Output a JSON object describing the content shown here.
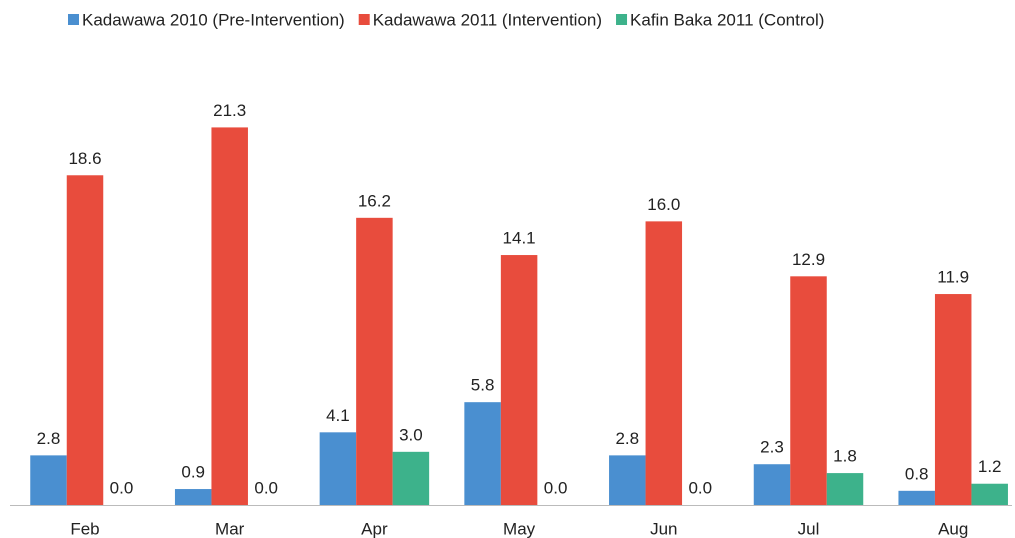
{
  "chart_data": {
    "type": "bar",
    "categories": [
      "Feb",
      "Mar",
      "Apr",
      "May",
      "Jun",
      "Jul",
      "Aug"
    ],
    "series": [
      {
        "name": "Kadawawa 2010 (Pre-Intervention)",
        "color": "#4a8fd0",
        "values": [
          2.8,
          0.9,
          4.1,
          5.8,
          2.8,
          2.3,
          0.8
        ],
        "value_labels": [
          "2.8",
          "0.9",
          "4.1",
          "5.8",
          "2.8",
          "2.3",
          "0.8"
        ]
      },
      {
        "name": "Kadawawa 2011 (Intervention)",
        "color": "#e84c3d",
        "values": [
          18.6,
          21.3,
          16.2,
          14.1,
          16.0,
          12.9,
          11.9
        ],
        "value_labels": [
          "18.6",
          "21.3",
          "16.2",
          "14.1",
          "16.0",
          "12.9",
          "11.9"
        ]
      },
      {
        "name": "Kafin Baka 2011 (Control)",
        "color": "#3db28b",
        "values": [
          0,
          0,
          3.0,
          0,
          0,
          1.8,
          1.2
        ],
        "value_labels": [
          "0.0",
          "0.0",
          "3.0",
          "0.0",
          "0.0",
          "1.8",
          "1.2"
        ]
      }
    ],
    "ylim": [
      0,
      22
    ]
  }
}
